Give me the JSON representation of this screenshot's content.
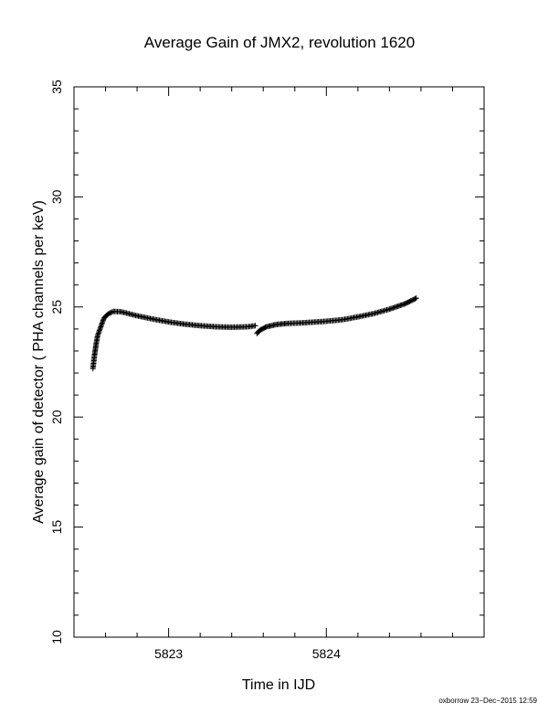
{
  "chart_data": {
    "type": "scatter",
    "title": "Average Gain of JMX2, revolution 1620",
    "xlabel": "Time in IJD",
    "ylabel": "Average gain of detector ( PHA channels per keV)",
    "footer": "oxborrow 23−Dec−2015 12:59",
    "xlim": [
      5822.4,
      5825.0
    ],
    "ylim": [
      10,
      35
    ],
    "x_ticks": [
      5823,
      5824
    ],
    "x_tick_labels": [
      "5823",
      "5824"
    ],
    "y_ticks": [
      10,
      15,
      20,
      25,
      30,
      35
    ],
    "y_tick_labels": [
      "10",
      "15",
      "20",
      "25",
      "30",
      "35"
    ],
    "marker": "plus",
    "grid": false,
    "series": [
      {
        "segments": [
          [
            [
              5822.52,
              22.2
            ],
            [
              5822.53,
              22.8
            ],
            [
              5822.54,
              23.3
            ],
            [
              5822.55,
              23.7
            ],
            [
              5822.57,
              24.1
            ],
            [
              5822.59,
              24.5
            ],
            [
              5822.62,
              24.7
            ],
            [
              5822.65,
              24.8
            ],
            [
              5822.7,
              24.78
            ],
            [
              5822.8,
              24.6
            ],
            [
              5822.9,
              24.45
            ],
            [
              5823.0,
              24.32
            ],
            [
              5823.1,
              24.22
            ],
            [
              5823.2,
              24.15
            ],
            [
              5823.3,
              24.1
            ],
            [
              5823.4,
              24.08
            ],
            [
              5823.5,
              24.1
            ],
            [
              5823.55,
              24.15
            ]
          ],
          [
            [
              5823.56,
              23.8
            ],
            [
              5823.58,
              23.95
            ],
            [
              5823.62,
              24.1
            ],
            [
              5823.68,
              24.2
            ],
            [
              5823.75,
              24.25
            ],
            [
              5823.85,
              24.28
            ],
            [
              5824.0,
              24.35
            ],
            [
              5824.1,
              24.42
            ],
            [
              5824.2,
              24.55
            ],
            [
              5824.3,
              24.7
            ],
            [
              5824.4,
              24.9
            ],
            [
              5824.5,
              25.15
            ],
            [
              5824.57,
              25.4
            ]
          ]
        ]
      }
    ]
  }
}
